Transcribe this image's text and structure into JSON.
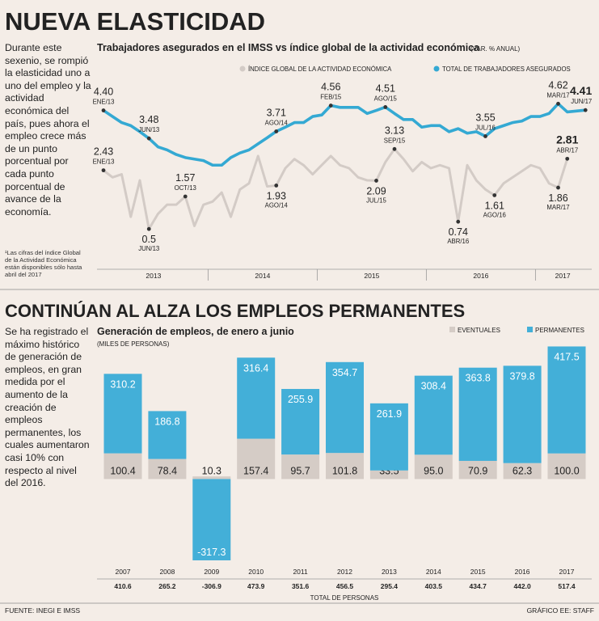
{
  "header": {
    "title": "NUEVA ELASTICIDAD"
  },
  "section1": {
    "text": "Durante este sexenio, se rompió la elasticidad uno a uno del empleo y la actividad económica del país, pues ahora el empleo crece más de un punto porcentual por cada punto porcentual de avance de la economía.",
    "note": "¹Las cifras del índice Global de la Actividad Económica están disponibles sólo hasta abril del 2017"
  },
  "section2": {
    "title": "CONTINÚAN AL ALZA LOS EMPLEOS PERMANENTES",
    "text": "Se ha registrado el máximo histórico de generación de empleos, en gran medida por el aumento de la creación de empleos permanentes, los cuales aumentaron casi 10% con respecto al nivel del 2016."
  },
  "chart_data": [
    {
      "type": "line",
      "title": "Trabajadores asegurados en el IMSS vs índice global de la actividad económica",
      "unit": "(VAR. % ANUAL)",
      "year_groups": [
        "2013",
        "2014",
        "2015",
        "2016",
        "2017"
      ],
      "ylim": [
        0,
        5
      ],
      "series": [
        {
          "name": "ÍNDICE GLOBAL DE LA ACTIVIDAD ECONÓMICA",
          "color": "#d3cbc6",
          "values": [
            2.43,
            2.2,
            2.3,
            0.9,
            2.1,
            0.5,
            1.0,
            1.3,
            1.3,
            1.57,
            0.6,
            1.3,
            1.4,
            1.7,
            0.9,
            1.8,
            2.0,
            2.9,
            1.9,
            1.93,
            2.5,
            2.8,
            2.6,
            2.3,
            2.6,
            2.9,
            2.6,
            2.5,
            2.2,
            2.1,
            2.09,
            2.7,
            3.13,
            2.8,
            2.4,
            2.7,
            2.5,
            2.6,
            2.5,
            0.74,
            2.6,
            2.1,
            1.8,
            1.61,
            2.0,
            2.2,
            2.4,
            2.6,
            2.5,
            2.0,
            1.86,
            2.81,
            null,
            null
          ]
        },
        {
          "name": "TOTAL DE TRABAJADORES ASEGURADOS",
          "color": "#34a9d3",
          "values": [
            4.4,
            4.2,
            4.0,
            3.9,
            3.7,
            3.48,
            3.2,
            3.1,
            2.95,
            2.85,
            2.8,
            2.75,
            2.6,
            2.6,
            2.85,
            3.0,
            3.1,
            3.3,
            3.5,
            3.71,
            3.85,
            4.0,
            4.0,
            4.2,
            4.25,
            4.56,
            4.5,
            4.5,
            4.5,
            4.3,
            4.4,
            4.51,
            4.3,
            4.1,
            4.1,
            3.85,
            3.9,
            3.9,
            3.7,
            3.8,
            3.65,
            3.7,
            3.55,
            3.8,
            3.9,
            4.0,
            4.05,
            4.2,
            4.2,
            4.3,
            4.62,
            4.35,
            4.38,
            4.41
          ]
        }
      ],
      "annotations": [
        {
          "series": 1,
          "index": 0,
          "label": "4.40",
          "date": "ENE/13"
        },
        {
          "series": 1,
          "index": 5,
          "label": "3.48",
          "date": "JUN/13"
        },
        {
          "series": 1,
          "index": 19,
          "label": "3.71",
          "date": "AGO/14"
        },
        {
          "series": 1,
          "index": 25,
          "label": "4.56",
          "date": "FEB/15"
        },
        {
          "series": 1,
          "index": 31,
          "label": "4.51",
          "date": "AGO/15"
        },
        {
          "series": 1,
          "index": 42,
          "label": "3.55",
          "date": "JUL/16"
        },
        {
          "series": 1,
          "index": 50,
          "label": "4.62",
          "date": "MAR/17"
        },
        {
          "series": 1,
          "index": 53,
          "label": "4.41",
          "date": "JUN/17"
        },
        {
          "series": 0,
          "index": 0,
          "label": "2.43",
          "date": "ENE/13"
        },
        {
          "series": 0,
          "index": 5,
          "label": "0.5",
          "date": "JUN/13"
        },
        {
          "series": 0,
          "index": 9,
          "label": "1.57",
          "date": "OCT/13"
        },
        {
          "series": 0,
          "index": 19,
          "label": "1.93",
          "date": "AGO/14"
        },
        {
          "series": 0,
          "index": 30,
          "label": "2.09",
          "date": "JUL/15"
        },
        {
          "series": 0,
          "index": 32,
          "label": "3.13",
          "date": "SEP/15"
        },
        {
          "series": 0,
          "index": 39,
          "label": "0.74",
          "date": "ABR/16"
        },
        {
          "series": 0,
          "index": 43,
          "label": "1.61",
          "date": "AGO/16"
        },
        {
          "series": 0,
          "index": 50,
          "label": "1.86",
          "date": "MAR/17"
        },
        {
          "series": 0,
          "index": 51,
          "label": "2.81",
          "date": "ABR/17"
        }
      ]
    },
    {
      "type": "stacked_bar",
      "title": "Generación de empleos, de enero a junio",
      "unit": "(MILES DE PERSONAS)",
      "categories": [
        "2007",
        "2008",
        "2009",
        "2010",
        "2011",
        "2012",
        "2013",
        "2014",
        "2015",
        "2016",
        "2017"
      ],
      "ylim": [
        -330,
        560
      ],
      "series": [
        {
          "name": "EVENTUALES",
          "color": "#d5ccc6",
          "values": [
            100.4,
            78.4,
            10.3,
            157.4,
            95.7,
            101.8,
            33.5,
            95.0,
            70.9,
            62.3,
            100.0
          ],
          "value_labels": [
            "100.4",
            "78.4",
            "10.3",
            "157.4",
            "95.7",
            "101.8",
            "33.5",
            "95.0",
            "70.9",
            "62.3",
            "100.0"
          ]
        },
        {
          "name": "PERMANENTES",
          "color": "#43afd8",
          "values": [
            310.2,
            186.8,
            -317.3,
            316.4,
            255.9,
            354.7,
            261.9,
            308.4,
            363.8,
            379.8,
            417.5
          ],
          "value_labels": [
            "310.2",
            "186.8",
            "-317.3",
            "316.4",
            "255.9",
            "354.7",
            "261.9",
            "308.4",
            "363.8",
            "379.8",
            "417.5"
          ]
        }
      ],
      "totals": {
        "label": "TOTAL DE PERSONAS",
        "values": [
          410.6,
          265.2,
          -306.9,
          473.9,
          351.6,
          456.5,
          295.4,
          403.5,
          434.7,
          442.0,
          517.4
        ],
        "value_labels": [
          "410.6",
          "265.2",
          "-306.9",
          "473.9",
          "351.6",
          "456.5",
          "295.4",
          "403.5",
          "434.7",
          "442.0",
          "517.4"
        ]
      }
    }
  ],
  "footer": {
    "source": "FUENTE: INEGI E IMSS",
    "credit": "GRÁFICO EE: STAFF"
  }
}
